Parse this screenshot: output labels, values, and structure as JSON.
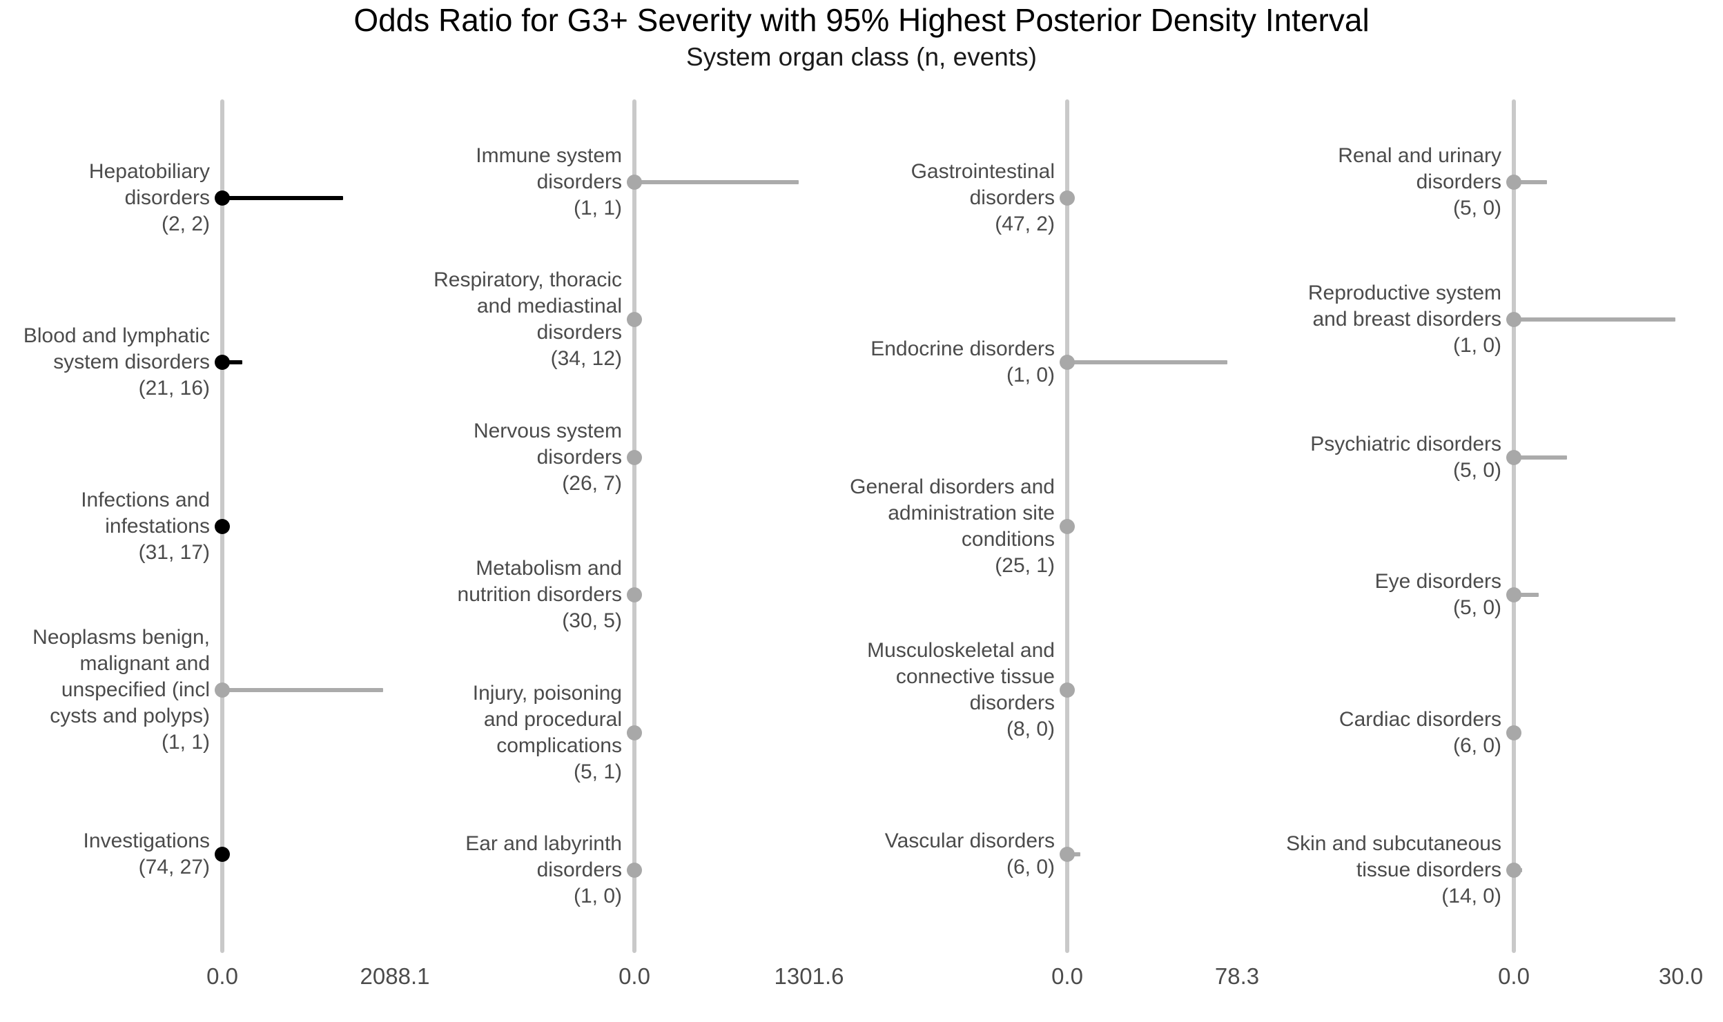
{
  "title": "Odds Ratio for G3+ Severity with 95% Highest Posterior Density Interval",
  "subtitle": "System organ class (n, events)",
  "colors": {
    "highlight_point": "#000000",
    "muted_point": "#a8a8a8",
    "highlight_bar": "#000000",
    "muted_bar": "#ababab",
    "axis_line": "#c9c9c9",
    "label_text": "#4b4b4b",
    "title_text": "#000000"
  },
  "chart_data": {
    "type": "scatter",
    "subtype": "forest-plot",
    "orientation": "horizontal-intervals",
    "grid": "off",
    "legend": "none",
    "x_axis_note": "each panel has its own free x scale starting at 0.0; points sit at 0 on the axis line with right-extending 95% HPD interval bars",
    "panels": [
      {
        "x_ticks": [
          "0.0",
          "2088.1"
        ],
        "x_max": 2088.1,
        "rows": [
          {
            "soc": "Hepatobiliary disorders",
            "n": 2,
            "events": 2,
            "label_lines": [
              "Hepatobiliary",
              "disorders",
              "(2, 2)"
            ],
            "point": 0.0,
            "hpd_upper": 1460,
            "emphasis": "black"
          },
          {
            "soc": "Blood and lymphatic system disorders",
            "n": 21,
            "events": 16,
            "label_lines": [
              "Blood and lymphatic",
              "system disorders",
              "(21, 16)"
            ],
            "point": 0.0,
            "hpd_upper": 240,
            "emphasis": "black"
          },
          {
            "soc": "Infections and infestations",
            "n": 31,
            "events": 17,
            "label_lines": [
              "Infections and",
              "infestations",
              "(31, 17)"
            ],
            "point": 0.0,
            "hpd_upper": 0,
            "emphasis": "black"
          },
          {
            "soc": "Neoplasms benign, malignant and unspecified (incl cysts and polyps)",
            "n": 1,
            "events": 1,
            "label_lines": [
              "Neoplasms benign,",
              "malignant and",
              "unspecified (incl",
              "cysts and polyps)",
              "(1, 1)"
            ],
            "point": 0.0,
            "hpd_upper": 1950,
            "emphasis": "gray"
          },
          {
            "soc": "Investigations",
            "n": 74,
            "events": 27,
            "label_lines": [
              "Investigations",
              "(74, 27)"
            ],
            "point": 0.0,
            "hpd_upper": 0,
            "emphasis": "black"
          }
        ]
      },
      {
        "x_ticks": [
          "0.0",
          "1301.6"
        ],
        "x_max": 1301.6,
        "rows": [
          {
            "soc": "Immune system disorders",
            "n": 1,
            "events": 1,
            "label_lines": [
              "Immune system",
              "disorders",
              "(1, 1)"
            ],
            "point": 0.0,
            "hpd_upper": 1225,
            "emphasis": "gray"
          },
          {
            "soc": "Respiratory, thoracic and mediastinal disorders",
            "n": 34,
            "events": 12,
            "label_lines": [
              "Respiratory, thoracic",
              "and mediastinal",
              "disorders",
              "(34, 12)"
            ],
            "point": 0.0,
            "hpd_upper": 0,
            "emphasis": "gray"
          },
          {
            "soc": "Nervous system disorders",
            "n": 26,
            "events": 7,
            "label_lines": [
              "Nervous system",
              "disorders",
              "(26, 7)"
            ],
            "point": 0.0,
            "hpd_upper": 0,
            "emphasis": "gray"
          },
          {
            "soc": "Metabolism and nutrition disorders",
            "n": 30,
            "events": 5,
            "label_lines": [
              "Metabolism and",
              "nutrition disorders",
              "(30, 5)"
            ],
            "point": 0.0,
            "hpd_upper": 0,
            "emphasis": "gray"
          },
          {
            "soc": "Injury, poisoning and procedural complications",
            "n": 5,
            "events": 1,
            "label_lines": [
              "Injury, poisoning",
              "and procedural",
              "complications",
              "(5, 1)"
            ],
            "point": 0.0,
            "hpd_upper": 0,
            "emphasis": "gray"
          },
          {
            "soc": "Ear and labyrinth disorders",
            "n": 1,
            "events": 0,
            "label_lines": [
              "Ear and labyrinth",
              "disorders",
              "(1, 0)"
            ],
            "point": 0.0,
            "hpd_upper": 0,
            "emphasis": "gray"
          }
        ]
      },
      {
        "x_ticks": [
          "0.0",
          "78.3"
        ],
        "x_max": 78.3,
        "rows": [
          {
            "soc": "Gastrointestinal disorders",
            "n": 47,
            "events": 2,
            "label_lines": [
              "Gastrointestinal",
              "disorders",
              "(47, 2)"
            ],
            "point": 0.0,
            "hpd_upper": 0,
            "emphasis": "gray"
          },
          {
            "soc": "Endocrine disorders",
            "n": 1,
            "events": 0,
            "label_lines": [
              "Endocrine disorders",
              "(1, 0)"
            ],
            "point": 0.0,
            "hpd_upper": 74,
            "emphasis": "gray"
          },
          {
            "soc": "General disorders and administration site conditions",
            "n": 25,
            "events": 1,
            "label_lines": [
              "General disorders and",
              "administration site",
              "conditions",
              "(25, 1)"
            ],
            "point": 0.0,
            "hpd_upper": 0,
            "emphasis": "gray"
          },
          {
            "soc": "Musculoskeletal and connective tissue disorders",
            "n": 8,
            "events": 0,
            "label_lines": [
              "Musculoskeletal and",
              "connective tissue",
              "disorders",
              "(8, 0)"
            ],
            "point": 0.0,
            "hpd_upper": 2,
            "emphasis": "gray"
          },
          {
            "soc": "Vascular disorders",
            "n": 6,
            "events": 0,
            "label_lines": [
              "Vascular disorders",
              "(6, 0)"
            ],
            "point": 0.0,
            "hpd_upper": 6,
            "emphasis": "gray"
          }
        ]
      },
      {
        "x_ticks": [
          "0.0",
          "30.0"
        ],
        "x_max": 30.0,
        "rows": [
          {
            "soc": "Renal and urinary disorders",
            "n": 5,
            "events": 0,
            "label_lines": [
              "Renal and urinary",
              "disorders",
              "(5, 0)"
            ],
            "point": 0.0,
            "hpd_upper": 6,
            "emphasis": "gray"
          },
          {
            "soc": "Reproductive system and breast disorders",
            "n": 1,
            "events": 0,
            "label_lines": [
              "Reproductive system",
              "and breast disorders",
              "(1, 0)"
            ],
            "point": 0.0,
            "hpd_upper": 29,
            "emphasis": "gray"
          },
          {
            "soc": "Psychiatric disorders",
            "n": 5,
            "events": 0,
            "label_lines": [
              "Psychiatric disorders",
              "(5, 0)"
            ],
            "point": 0.0,
            "hpd_upper": 9.5,
            "emphasis": "gray"
          },
          {
            "soc": "Eye disorders",
            "n": 5,
            "events": 0,
            "label_lines": [
              "Eye disorders",
              "(5, 0)"
            ],
            "point": 0.0,
            "hpd_upper": 4.5,
            "emphasis": "gray"
          },
          {
            "soc": "Cardiac disorders",
            "n": 6,
            "events": 0,
            "label_lines": [
              "Cardiac disorders",
              "(6, 0)"
            ],
            "point": 0.0,
            "hpd_upper": 0,
            "emphasis": "gray"
          },
          {
            "soc": "Skin and subcutaneous tissue disorders",
            "n": 14,
            "events": 0,
            "label_lines": [
              "Skin and subcutaneous",
              "tissue disorders",
              "(14, 0)"
            ],
            "point": 0.0,
            "hpd_upper": 1.5,
            "emphasis": "gray"
          }
        ]
      }
    ]
  }
}
